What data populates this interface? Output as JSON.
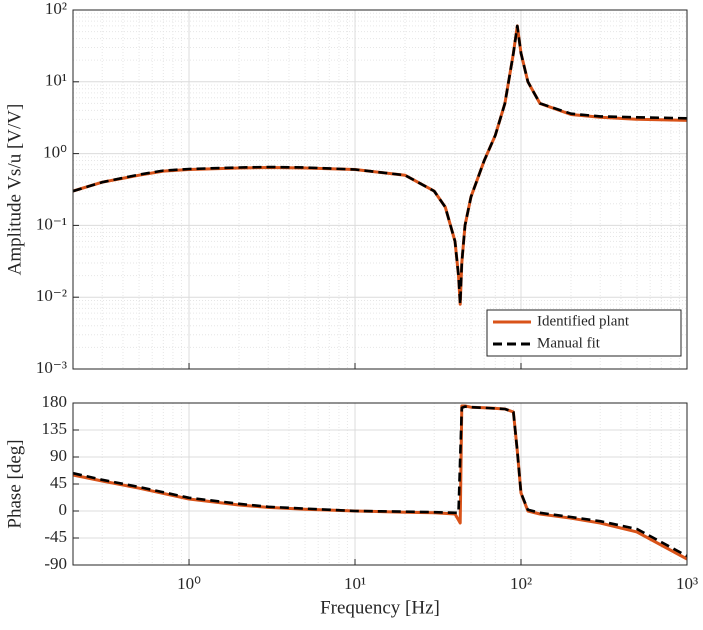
{
  "chart_data": [
    {
      "type": "line",
      "xlog": true,
      "ylog": true,
      "grid": true,
      "legend": "lower right",
      "ylabel": "Amplitude Vs/u [V/V]",
      "xlim": [
        0.2,
        1000
      ],
      "xticks": [
        1,
        10,
        100,
        1000
      ],
      "ylim": [
        0.001,
        100
      ],
      "yticks": [
        {
          "value": 0.001,
          "label": "10⁻³"
        },
        {
          "value": 0.01,
          "label": "10⁻²"
        },
        {
          "value": 0.1,
          "label": "10⁻¹"
        },
        {
          "value": 1,
          "label": "10⁰"
        },
        {
          "value": 10,
          "label": "10¹"
        },
        {
          "value": 100,
          "label": "10²"
        }
      ],
      "x": [
        0.2,
        0.3,
        0.5,
        0.7,
        1,
        2,
        3,
        5,
        10,
        20,
        30,
        35,
        40,
        42,
        43,
        44,
        46,
        50,
        60,
        70,
        80,
        90,
        95,
        100,
        110,
        130,
        200,
        300,
        500,
        1000
      ],
      "series": [
        {
          "name": "Identified plant",
          "color": "#d95319",
          "dash": false,
          "values": [
            0.3,
            0.4,
            0.5,
            0.57,
            0.6,
            0.63,
            0.64,
            0.63,
            0.6,
            0.5,
            0.3,
            0.18,
            0.06,
            0.02,
            0.008,
            0.03,
            0.1,
            0.25,
            0.8,
            1.8,
            5,
            25,
            60,
            25,
            10,
            5,
            3.5,
            3.2,
            3.0,
            2.9
          ]
        },
        {
          "name": "Manual fit",
          "color": "#000000",
          "dash": true,
          "values": [
            0.3,
            0.4,
            0.51,
            0.58,
            0.61,
            0.64,
            0.65,
            0.64,
            0.6,
            0.5,
            0.3,
            0.18,
            0.06,
            0.02,
            0.008,
            0.03,
            0.1,
            0.25,
            0.8,
            1.8,
            5,
            25,
            60,
            25,
            10,
            5,
            3.6,
            3.3,
            3.2,
            3.1
          ]
        }
      ]
    },
    {
      "type": "line",
      "xlog": true,
      "ylog": false,
      "grid": true,
      "xlabel": "Frequency [Hz]",
      "ylabel": "Phase [deg]",
      "xlim": [
        0.2,
        1000
      ],
      "xticks": [
        {
          "value": 1,
          "label": "10⁰"
        },
        {
          "value": 10,
          "label": "10¹"
        },
        {
          "value": 100,
          "label": "10²"
        },
        {
          "value": 1000,
          "label": "10³"
        }
      ],
      "ylim": [
        -90,
        180
      ],
      "yticks": [
        -90,
        -45,
        0,
        45,
        90,
        135,
        180
      ],
      "x": [
        0.2,
        0.3,
        0.5,
        1,
        2,
        3,
        5,
        10,
        20,
        30,
        40,
        42,
        43,
        44,
        46,
        50,
        60,
        70,
        80,
        90,
        95,
        100,
        110,
        130,
        200,
        300,
        500,
        1000
      ],
      "series": [
        {
          "name": "Identified plant",
          "color": "#d95319",
          "dash": false,
          "values": [
            60,
            50,
            38,
            20,
            10,
            6,
            3,
            0,
            -2,
            -3,
            -5,
            -15,
            -20,
            175,
            175,
            173,
            172,
            171,
            170,
            165,
            100,
            30,
            0,
            -5,
            -12,
            -20,
            -35,
            -80
          ]
        },
        {
          "name": "Manual fit",
          "color": "#000000",
          "dash": true,
          "values": [
            63,
            52,
            40,
            22,
            12,
            7,
            4,
            0,
            -1,
            -2,
            -3,
            -3,
            90,
            172,
            174,
            173,
            172,
            171,
            170,
            165,
            100,
            30,
            2,
            -3,
            -10,
            -17,
            -30,
            -75
          ]
        }
      ]
    }
  ]
}
